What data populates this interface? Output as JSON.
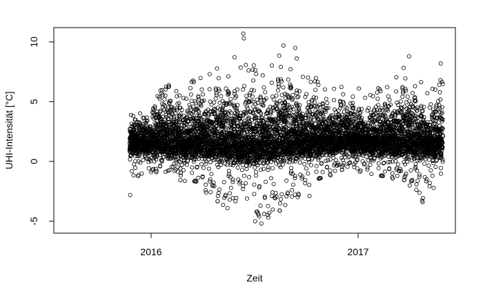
{
  "chart_data": {
    "type": "scatter",
    "title": "",
    "xlabel": "Zeit",
    "ylabel": "UHI-Intensität [°C]",
    "marker": "open-circle",
    "color": "#000000",
    "grid": false,
    "legend": "none",
    "xlim": [
      "2015-07-13",
      "2017-06-22"
    ],
    "ylim": [
      -6,
      11.2
    ],
    "x_ticks": [
      {
        "label": "2016",
        "date": "2016-01-01"
      },
      {
        "label": "2017",
        "date": "2017-01-01"
      }
    ],
    "y_ticks": [
      -5,
      0,
      5,
      10
    ],
    "date_range": [
      "2015-11-24",
      "2017-05-30"
    ],
    "y_range": [
      -5.2,
      10.7
    ],
    "envelope": [
      {
        "date": "2015-11-24",
        "low": -2.8,
        "high": 4.0,
        "center": 1.0
      },
      {
        "date": "2016-01-01",
        "low": -1.0,
        "high": 5.5,
        "center": 1.0
      },
      {
        "date": "2016-01-20",
        "low": -0.8,
        "high": 8.3,
        "center": 1.0
      },
      {
        "date": "2016-03-01",
        "low": -2.0,
        "high": 6.5,
        "center": 0.8
      },
      {
        "date": "2016-03-20",
        "low": -2.0,
        "high": 8.8,
        "center": 0.8
      },
      {
        "date": "2016-05-10",
        "low": -4.0,
        "high": 8.5,
        "center": 0.5
      },
      {
        "date": "2016-06-10",
        "low": -3.0,
        "high": 10.7,
        "center": 0.3
      },
      {
        "date": "2016-07-10",
        "low": -5.2,
        "high": 9.0,
        "center": 0.3
      },
      {
        "date": "2016-08-10",
        "low": -4.5,
        "high": 9.8,
        "center": 0.5
      },
      {
        "date": "2016-09-20",
        "low": -2.9,
        "high": 9.5,
        "center": 0.8
      },
      {
        "date": "2016-11-01",
        "low": -1.5,
        "high": 7.5,
        "center": 1.0
      },
      {
        "date": "2016-12-15",
        "low": -0.5,
        "high": 6.5,
        "center": 1.2
      },
      {
        "date": "2017-02-01",
        "low": -1.5,
        "high": 7.0,
        "center": 1.0
      },
      {
        "date": "2017-03-20",
        "low": -1.5,
        "high": 8.7,
        "center": 0.8
      },
      {
        "date": "2017-04-25",
        "low": -3.4,
        "high": 7.2,
        "center": 0.8
      },
      {
        "date": "2017-05-30",
        "low": -2.0,
        "high": 8.1,
        "center": 0.8
      }
    ],
    "outliers": [
      {
        "date": "2015-11-25",
        "y": -2.8
      },
      {
        "date": "2016-05-15",
        "y": -3.9
      },
      {
        "date": "2016-06-12",
        "y": 10.7
      },
      {
        "date": "2016-06-13",
        "y": 10.3
      },
      {
        "date": "2016-07-03",
        "y": -5.0
      },
      {
        "date": "2016-07-10",
        "y": -4.6
      },
      {
        "date": "2016-07-14",
        "y": -5.2
      },
      {
        "date": "2016-07-19",
        "y": -4.4
      },
      {
        "date": "2016-07-28",
        "y": -4.3
      },
      {
        "date": "2016-08-22",
        "y": 9.7
      },
      {
        "date": "2016-09-12",
        "y": 9.5
      },
      {
        "date": "2016-09-18",
        "y": -2.8
      },
      {
        "date": "2016-10-07",
        "y": -2.9
      },
      {
        "date": "2017-04-01",
        "y": 8.8
      },
      {
        "date": "2017-04-25",
        "y": -3.4
      },
      {
        "date": "2017-05-27",
        "y": 8.2
      }
    ]
  }
}
